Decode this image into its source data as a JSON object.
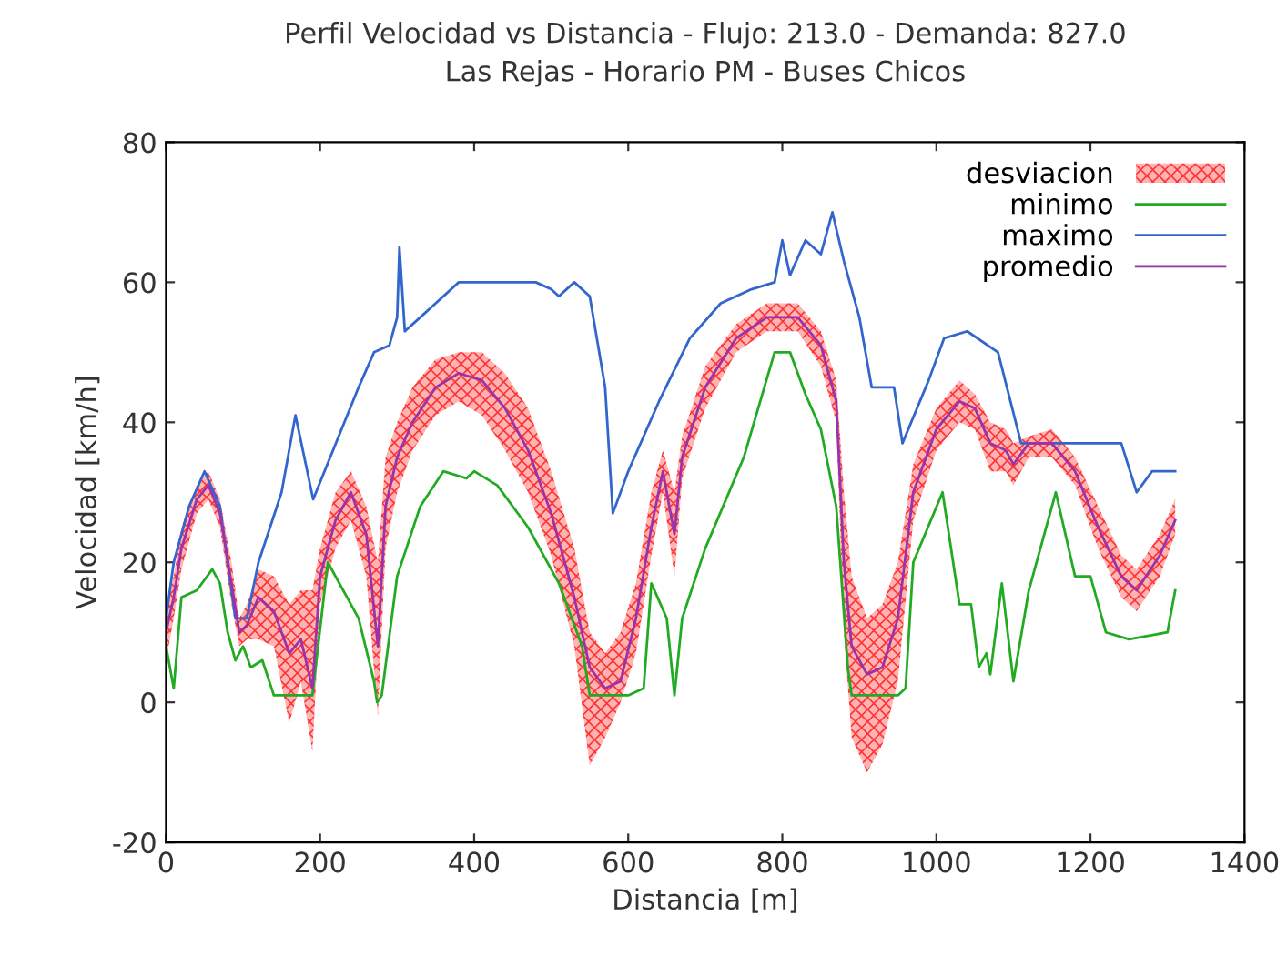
{
  "chart_data": {
    "type": "line",
    "title": "Perfil Velocidad vs Distancia - Flujo: 213.0 - Demanda: 827.0",
    "subtitle": "Las Rejas - Horario PM - Buses Chicos",
    "xlabel": "Distancia [m]",
    "ylabel": "Velocidad [km/h]",
    "xlim": [
      0,
      1400
    ],
    "xticks": [
      0,
      200,
      400,
      600,
      800,
      1000,
      1200,
      1400
    ],
    "ylim": [
      -20,
      80
    ],
    "yticks": [
      -20,
      0,
      20,
      40,
      60,
      80
    ],
    "grid": false,
    "legend": "top right",
    "series": [
      {
        "name": "desviacion",
        "type": "area",
        "color": "#ff3333"
      },
      {
        "name": "minimo",
        "color": "#22aa22",
        "x": [
          0,
          10,
          20,
          40,
          60,
          70,
          80,
          90,
          100,
          110,
          125,
          140,
          160,
          190,
          210,
          250,
          270,
          274,
          280,
          300,
          330,
          360,
          390,
          400,
          430,
          470,
          510,
          540,
          550,
          600,
          620,
          630,
          650,
          660,
          670,
          700,
          750,
          790,
          810,
          830,
          850,
          870,
          885,
          890,
          950,
          960,
          970,
          1008,
          1030,
          1045,
          1055,
          1065,
          1070,
          1085,
          1100,
          1120,
          1155,
          1180,
          1200,
          1220,
          1250,
          1300,
          1310
        ],
        "values": [
          8,
          2,
          15,
          16,
          19,
          17,
          10,
          6,
          8,
          5,
          6,
          1,
          1,
          1,
          20,
          12,
          3,
          0,
          1,
          18,
          28,
          33,
          32,
          33,
          31,
          25,
          17,
          8,
          1,
          1,
          2,
          17,
          12,
          1,
          12,
          22,
          35,
          50,
          50,
          44,
          39,
          28,
          5,
          1,
          1,
          2,
          20,
          30,
          14,
          14,
          5,
          7,
          4,
          17,
          3,
          16,
          30,
          18,
          18,
          10,
          9,
          10,
          16
        ]
      },
      {
        "name": "maximo",
        "color": "#3366cc",
        "x": [
          0,
          10,
          30,
          50,
          70,
          90,
          105,
          120,
          150,
          168,
          191,
          250,
          270,
          290,
          300,
          303,
          310,
          330,
          350,
          380,
          480,
          500,
          510,
          530,
          550,
          570,
          580,
          600,
          640,
          680,
          720,
          760,
          790,
          800,
          810,
          830,
          850,
          865,
          880,
          900,
          916,
          945,
          956,
          990,
          1010,
          1040,
          1080,
          1110,
          1200,
          1240,
          1260,
          1280,
          1310
        ],
        "values": [
          12,
          20,
          28,
          33,
          28,
          12,
          12,
          20,
          30,
          41,
          29,
          45,
          50,
          51,
          55,
          65,
          53,
          55,
          57,
          60,
          60,
          59,
          58,
          60,
          58,
          45,
          27,
          33,
          43,
          52,
          57,
          59,
          60,
          66,
          61,
          66,
          64,
          70,
          63,
          55,
          45,
          45,
          37,
          46,
          52,
          53,
          50,
          37,
          37,
          37,
          30,
          33,
          33
        ]
      },
      {
        "name": "promedio",
        "color": "#9933aa",
        "x": [
          0,
          10,
          20,
          40,
          55,
          70,
          85,
          95,
          105,
          120,
          140,
          160,
          175,
          190,
          200,
          220,
          240,
          260,
          275,
          285,
          300,
          320,
          350,
          380,
          410,
          440,
          470,
          500,
          530,
          550,
          570,
          590,
          610,
          630,
          645,
          660,
          670,
          700,
          740,
          780,
          820,
          850,
          870,
          880,
          890,
          910,
          930,
          950,
          970,
          1000,
          1030,
          1050,
          1070,
          1090,
          1100,
          1120,
          1150,
          1180,
          1210,
          1240,
          1260,
          1290,
          1310
        ],
        "values": [
          10,
          15,
          22,
          29,
          31,
          27,
          17,
          10,
          11,
          15,
          13,
          7,
          9,
          2,
          18,
          26,
          30,
          24,
          8,
          28,
          35,
          40,
          45,
          47,
          46,
          42,
          36,
          27,
          15,
          5,
          2,
          3,
          12,
          25,
          33,
          24,
          35,
          45,
          52,
          55,
          55,
          51,
          43,
          20,
          8,
          4,
          5,
          12,
          30,
          39,
          43,
          42,
          37,
          36,
          34,
          37,
          37,
          33,
          25,
          18,
          16,
          21,
          26
        ],
        "lower": [
          6,
          12,
          19,
          27,
          29,
          25,
          14,
          8,
          9,
          9,
          8,
          -3,
          3,
          -7,
          14,
          22,
          26,
          18,
          -2,
          22,
          30,
          36,
          41,
          43,
          41,
          36,
          30,
          21,
          8,
          -9,
          -5,
          0,
          7,
          21,
          30,
          18,
          32,
          42,
          50,
          53,
          53,
          48,
          40,
          10,
          -5,
          -10,
          -6,
          3,
          26,
          36,
          40,
          39,
          33,
          33,
          31,
          35,
          35,
          31,
          22,
          15,
          13,
          18,
          24
        ],
        "upper": [
          13,
          18,
          25,
          31,
          33,
          29,
          20,
          12,
          14,
          19,
          18,
          14,
          16,
          16,
          22,
          30,
          33,
          28,
          20,
          35,
          40,
          45,
          49,
          50,
          50,
          47,
          42,
          33,
          22,
          10,
          7,
          10,
          17,
          30,
          36,
          30,
          38,
          48,
          54,
          57,
          57,
          53,
          46,
          30,
          18,
          12,
          14,
          20,
          34,
          42,
          46,
          44,
          40,
          39,
          37,
          38,
          39,
          35,
          28,
          21,
          19,
          24,
          29
        ]
      }
    ]
  }
}
